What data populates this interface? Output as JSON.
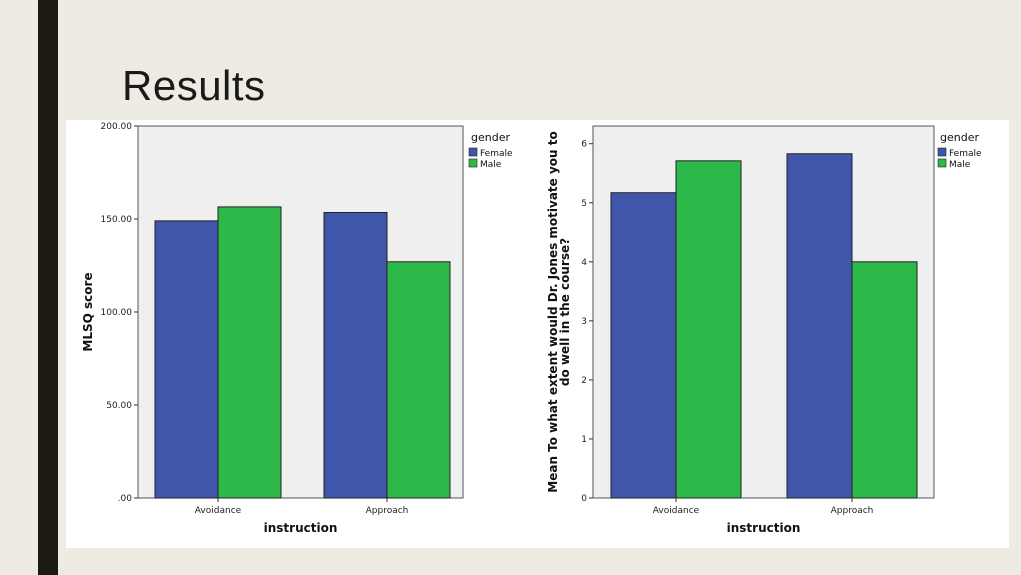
{
  "slide": {
    "title": "Results"
  },
  "colors": {
    "female": "#3f56ab",
    "male": "#2db84a",
    "plot_bg": "#efefef"
  },
  "chart_data": [
    {
      "type": "bar",
      "categories": [
        "Avoidance",
        "Approach"
      ],
      "series": [
        {
          "name": "Female",
          "values": [
            149,
            153.5
          ]
        },
        {
          "name": "Male",
          "values": [
            156.5,
            127
          ]
        }
      ],
      "xlabel": "instruction",
      "ylabel": "MLSQ score",
      "ylim": [
        0,
        200
      ],
      "yticks": [
        0,
        50,
        100,
        150,
        200
      ],
      "ytick_labels": [
        ".00",
        "50.00",
        "100.00",
        "150.00",
        "200.00"
      ],
      "legend": {
        "title": "gender",
        "entries": [
          "Female",
          "Male"
        ],
        "placement": "right"
      },
      "grid": false
    },
    {
      "type": "bar",
      "categories": [
        "Avoidance",
        "Approach"
      ],
      "series": [
        {
          "name": "Female",
          "values": [
            5.17,
            5.83
          ]
        },
        {
          "name": "Male",
          "values": [
            5.71,
            4.0
          ]
        }
      ],
      "xlabel": "instruction",
      "ylabel": "Mean To what extent would Dr. Jones motivate you to do well in the course?",
      "ylabel_lines": [
        "Mean To what extent would Dr. Jones motivate you to",
        "do well in the course?"
      ],
      "ylim": [
        0,
        6.3
      ],
      "yticks": [
        0,
        1,
        2,
        3,
        4,
        5,
        6
      ],
      "ytick_labels": [
        "0",
        "1",
        "2",
        "3",
        "4",
        "5",
        "6"
      ],
      "legend": {
        "title": "gender",
        "entries": [
          "Female",
          "Male"
        ],
        "placement": "right"
      },
      "grid": false
    }
  ]
}
